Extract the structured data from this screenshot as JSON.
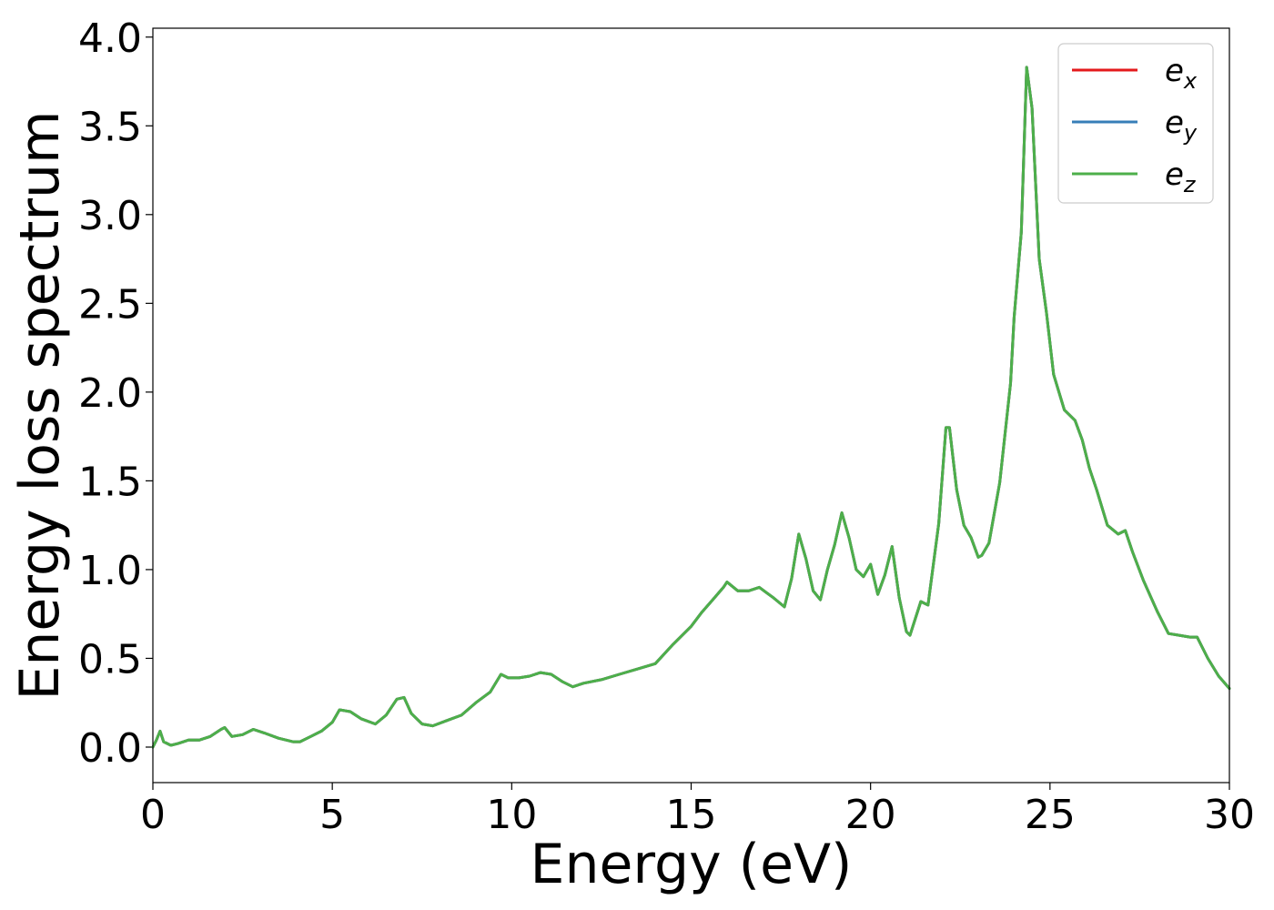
{
  "chart_data": {
    "type": "line",
    "title": "",
    "xlabel": "Energy (eV)",
    "ylabel": "Energy loss spectrum",
    "xlim": [
      0,
      30
    ],
    "ylim": [
      -0.2,
      4.05
    ],
    "x_ticks": [
      0,
      5,
      10,
      15,
      20,
      25,
      30
    ],
    "x_tick_labels": [
      "0",
      "5",
      "10",
      "15",
      "20",
      "25",
      "30"
    ],
    "y_ticks": [
      0.0,
      0.5,
      1.0,
      1.5,
      2.0,
      2.5,
      3.0,
      3.5,
      4.0
    ],
    "y_tick_labels": [
      "0.0",
      "0.5",
      "1.0",
      "1.5",
      "2.0",
      "2.5",
      "3.0",
      "3.5",
      "4.0"
    ],
    "grid": false,
    "legend_position": "top-right",
    "x": [
      0,
      0.1,
      0.2,
      0.3,
      0.5,
      0.7,
      1.0,
      1.3,
      1.6,
      1.9,
      2.0,
      2.2,
      2.5,
      2.8,
      3.1,
      3.5,
      3.9,
      4.1,
      4.4,
      4.7,
      5.0,
      5.2,
      5.5,
      5.8,
      6.2,
      6.5,
      6.8,
      7.0,
      7.2,
      7.5,
      7.8,
      8.2,
      8.6,
      9.0,
      9.4,
      9.7,
      9.9,
      10.2,
      10.5,
      10.8,
      11.1,
      11.4,
      11.7,
      12.0,
      12.5,
      13.0,
      13.5,
      14.0,
      14.5,
      14.8,
      15.0,
      15.3,
      15.6,
      15.9,
      16.0,
      16.3,
      16.6,
      16.9,
      17.1,
      17.3,
      17.6,
      17.8,
      18.0,
      18.2,
      18.4,
      18.6,
      18.8,
      19.0,
      19.2,
      19.4,
      19.6,
      19.8,
      20.0,
      20.2,
      20.4,
      20.6,
      20.8,
      21.0,
      21.1,
      21.4,
      21.6,
      21.9,
      22.1,
      22.2,
      22.4,
      22.6,
      22.8,
      23.0,
      23.1,
      23.3,
      23.6,
      23.9,
      24.0,
      24.2,
      24.35,
      24.5,
      24.7,
      24.9,
      25.1,
      25.4,
      25.7,
      25.9,
      26.1,
      26.3,
      26.6,
      26.9,
      27.1,
      27.3,
      27.6,
      28.0,
      28.3,
      28.6,
      28.9,
      29.1,
      29.4,
      29.7,
      30.0
    ],
    "series": [
      {
        "name": "e_x",
        "label_base": "e",
        "label_sub": "x",
        "color": "#e41a1c",
        "values": [
          0.0,
          0.04,
          0.09,
          0.03,
          0.01,
          0.02,
          0.04,
          0.04,
          0.06,
          0.1,
          0.11,
          0.06,
          0.07,
          0.1,
          0.08,
          0.05,
          0.03,
          0.03,
          0.06,
          0.09,
          0.14,
          0.21,
          0.2,
          0.16,
          0.13,
          0.18,
          0.27,
          0.28,
          0.19,
          0.13,
          0.12,
          0.15,
          0.18,
          0.25,
          0.31,
          0.41,
          0.39,
          0.39,
          0.4,
          0.42,
          0.41,
          0.37,
          0.34,
          0.36,
          0.38,
          0.41,
          0.44,
          0.47,
          0.58,
          0.64,
          0.68,
          0.76,
          0.83,
          0.9,
          0.93,
          0.88,
          0.88,
          0.9,
          0.87,
          0.84,
          0.79,
          0.95,
          1.2,
          1.06,
          0.88,
          0.83,
          1.0,
          1.14,
          1.32,
          1.18,
          1.0,
          0.96,
          1.03,
          0.86,
          0.97,
          1.13,
          0.84,
          0.65,
          0.63,
          0.82,
          0.8,
          1.26,
          1.8,
          1.8,
          1.45,
          1.25,
          1.18,
          1.07,
          1.08,
          1.15,
          1.49,
          2.05,
          2.42,
          2.9,
          3.83,
          3.6,
          2.75,
          2.45,
          2.1,
          1.9,
          1.84,
          1.73,
          1.57,
          1.45,
          1.25,
          1.2,
          1.22,
          1.1,
          0.94,
          0.76,
          0.64,
          0.63,
          0.62,
          0.62,
          0.5,
          0.4,
          0.33
        ]
      },
      {
        "name": "e_y",
        "label_base": "e",
        "label_sub": "y",
        "color": "#377eb8",
        "values": [
          0.0,
          0.04,
          0.09,
          0.03,
          0.01,
          0.02,
          0.04,
          0.04,
          0.06,
          0.1,
          0.11,
          0.06,
          0.07,
          0.1,
          0.08,
          0.05,
          0.03,
          0.03,
          0.06,
          0.09,
          0.14,
          0.21,
          0.2,
          0.16,
          0.13,
          0.18,
          0.27,
          0.28,
          0.19,
          0.13,
          0.12,
          0.15,
          0.18,
          0.25,
          0.31,
          0.41,
          0.39,
          0.39,
          0.4,
          0.42,
          0.41,
          0.37,
          0.34,
          0.36,
          0.38,
          0.41,
          0.44,
          0.47,
          0.58,
          0.64,
          0.68,
          0.76,
          0.83,
          0.9,
          0.93,
          0.88,
          0.88,
          0.9,
          0.87,
          0.84,
          0.79,
          0.95,
          1.2,
          1.06,
          0.88,
          0.83,
          1.0,
          1.14,
          1.32,
          1.18,
          1.0,
          0.96,
          1.03,
          0.86,
          0.97,
          1.13,
          0.84,
          0.65,
          0.63,
          0.82,
          0.8,
          1.26,
          1.8,
          1.8,
          1.45,
          1.25,
          1.18,
          1.07,
          1.08,
          1.15,
          1.49,
          2.05,
          2.42,
          2.9,
          3.83,
          3.6,
          2.75,
          2.45,
          2.1,
          1.9,
          1.84,
          1.73,
          1.57,
          1.45,
          1.25,
          1.2,
          1.22,
          1.1,
          0.94,
          0.76,
          0.64,
          0.63,
          0.62,
          0.62,
          0.5,
          0.4,
          0.33
        ]
      },
      {
        "name": "e_z",
        "label_base": "e",
        "label_sub": "z",
        "color": "#4daf4a",
        "values": [
          0.0,
          0.04,
          0.09,
          0.03,
          0.01,
          0.02,
          0.04,
          0.04,
          0.06,
          0.1,
          0.11,
          0.06,
          0.07,
          0.1,
          0.08,
          0.05,
          0.03,
          0.03,
          0.06,
          0.09,
          0.14,
          0.21,
          0.2,
          0.16,
          0.13,
          0.18,
          0.27,
          0.28,
          0.19,
          0.13,
          0.12,
          0.15,
          0.18,
          0.25,
          0.31,
          0.41,
          0.39,
          0.39,
          0.4,
          0.42,
          0.41,
          0.37,
          0.34,
          0.36,
          0.38,
          0.41,
          0.44,
          0.47,
          0.58,
          0.64,
          0.68,
          0.76,
          0.83,
          0.9,
          0.93,
          0.88,
          0.88,
          0.9,
          0.87,
          0.84,
          0.79,
          0.95,
          1.2,
          1.06,
          0.88,
          0.83,
          1.0,
          1.14,
          1.32,
          1.18,
          1.0,
          0.96,
          1.03,
          0.86,
          0.97,
          1.13,
          0.84,
          0.65,
          0.63,
          0.82,
          0.8,
          1.26,
          1.8,
          1.8,
          1.45,
          1.25,
          1.18,
          1.07,
          1.08,
          1.15,
          1.49,
          2.05,
          2.42,
          2.9,
          3.83,
          3.6,
          2.75,
          2.45,
          2.1,
          1.9,
          1.84,
          1.73,
          1.57,
          1.45,
          1.25,
          1.2,
          1.22,
          1.1,
          0.94,
          0.76,
          0.64,
          0.63,
          0.62,
          0.62,
          0.5,
          0.4,
          0.33
        ]
      }
    ]
  }
}
